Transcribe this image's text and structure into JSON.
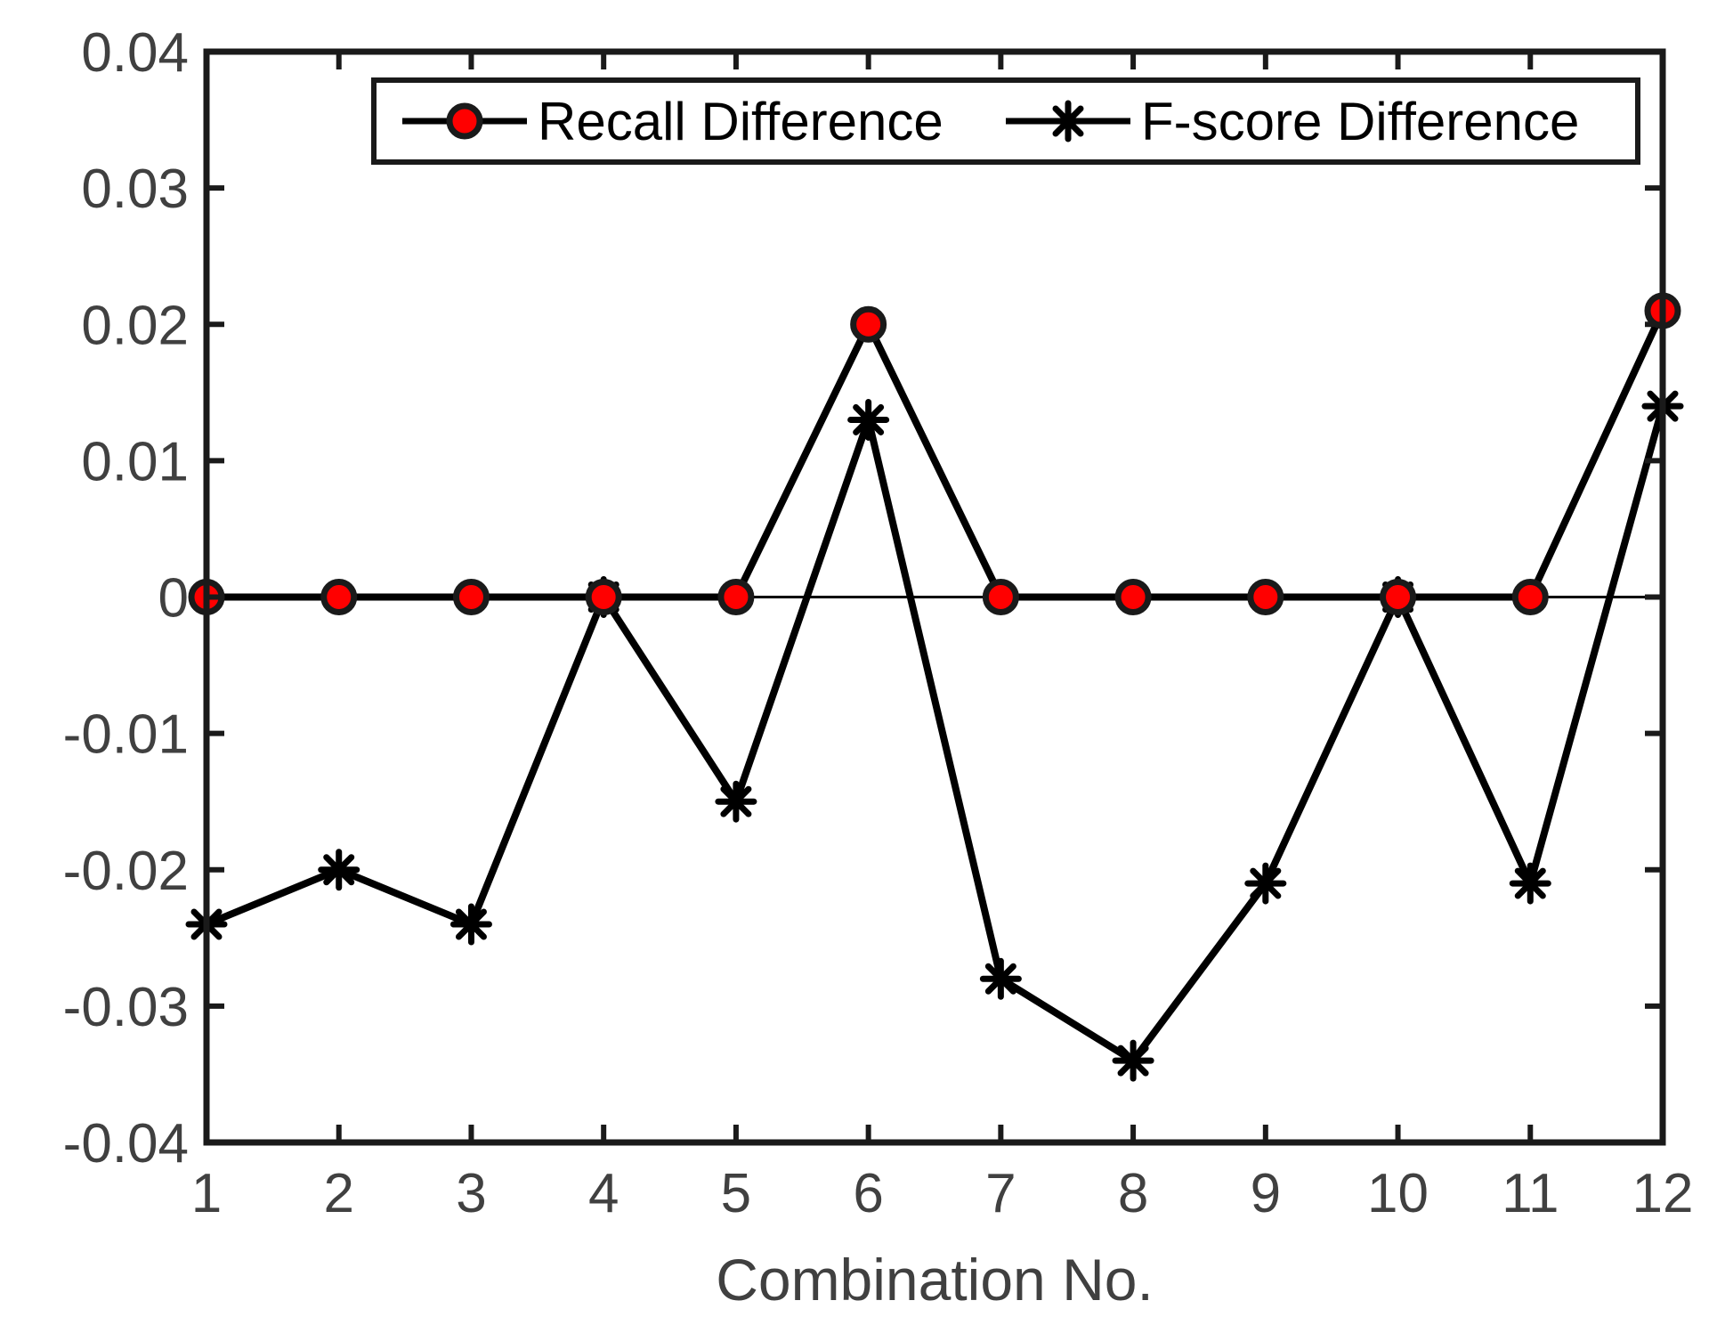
{
  "chart_data": {
    "type": "line",
    "title": "",
    "xlabel": "Combination No.",
    "ylabel": "",
    "x": [
      1,
      2,
      3,
      4,
      5,
      6,
      7,
      8,
      9,
      10,
      11,
      12
    ],
    "xticks": [
      "1",
      "2",
      "3",
      "4",
      "5",
      "6",
      "7",
      "8",
      "9",
      "10",
      "11",
      "12"
    ],
    "xlim": [
      1,
      12
    ],
    "ylim": [
      -0.04,
      0.04
    ],
    "yticks": [
      0.04,
      0.03,
      0.02,
      0.01,
      0,
      -0.01,
      -0.02,
      -0.03,
      -0.04
    ],
    "yticklabels": [
      "0.04",
      "0.03",
      "0.02",
      "0.01",
      "0",
      "-0.01",
      "-0.02",
      "-0.03",
      "-0.04"
    ],
    "grid": false,
    "legend_position": "top-right",
    "series": [
      {
        "name": "Recall Difference",
        "marker": "circle",
        "marker_color": "#ff0000",
        "line_color": "#000000",
        "values": [
          0,
          0,
          0,
          0,
          0,
          0.02,
          0,
          0,
          0,
          0,
          0,
          0.021
        ]
      },
      {
        "name": "F-score Difference",
        "marker": "asterisk",
        "marker_color": "#000000",
        "line_color": "#000000",
        "values": [
          -0.024,
          -0.02,
          -0.024,
          0,
          -0.015,
          0.013,
          -0.028,
          -0.034,
          -0.021,
          0,
          -0.021,
          0.014
        ]
      }
    ],
    "reference_line": {
      "y": 0,
      "color": "#000000"
    }
  }
}
